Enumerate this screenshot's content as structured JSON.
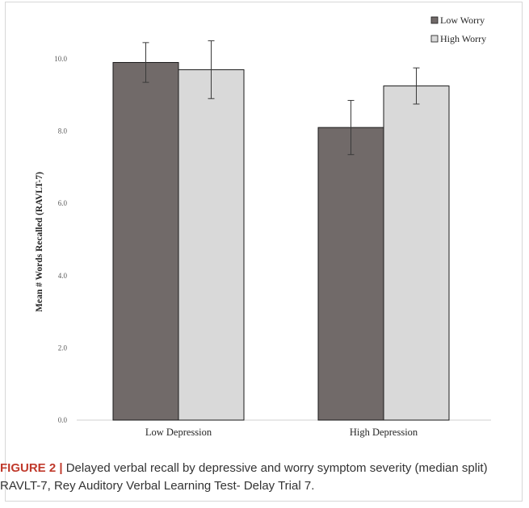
{
  "caption": {
    "label": "FIGURE 2 |",
    "text": " Delayed verbal recall by depressive and worry symptom severity (median split) RAVLT-7, Rey Auditory Verbal Learning Test- Delay Trial 7."
  },
  "chart_data": {
    "type": "bar",
    "categories": [
      "Low Depression",
      "High Depression"
    ],
    "series": [
      {
        "name": "Low Worry",
        "values": [
          9.9,
          8.1
        ],
        "error": [
          0.55,
          0.75
        ],
        "color": "#716a69"
      },
      {
        "name": "High Worry",
        "values": [
          9.7,
          9.25
        ],
        "error": [
          0.8,
          0.5
        ],
        "color": "#d9d9d9"
      }
    ],
    "title": "",
    "xlabel": "",
    "ylabel": "Mean # Words Recalled (RAVLT-7)",
    "ylim": [
      0,
      11
    ],
    "yticks": [
      "0.0",
      "2.0",
      "4.0",
      "6.0",
      "8.0",
      "10.0"
    ],
    "legend": "top-right",
    "grid": false
  }
}
